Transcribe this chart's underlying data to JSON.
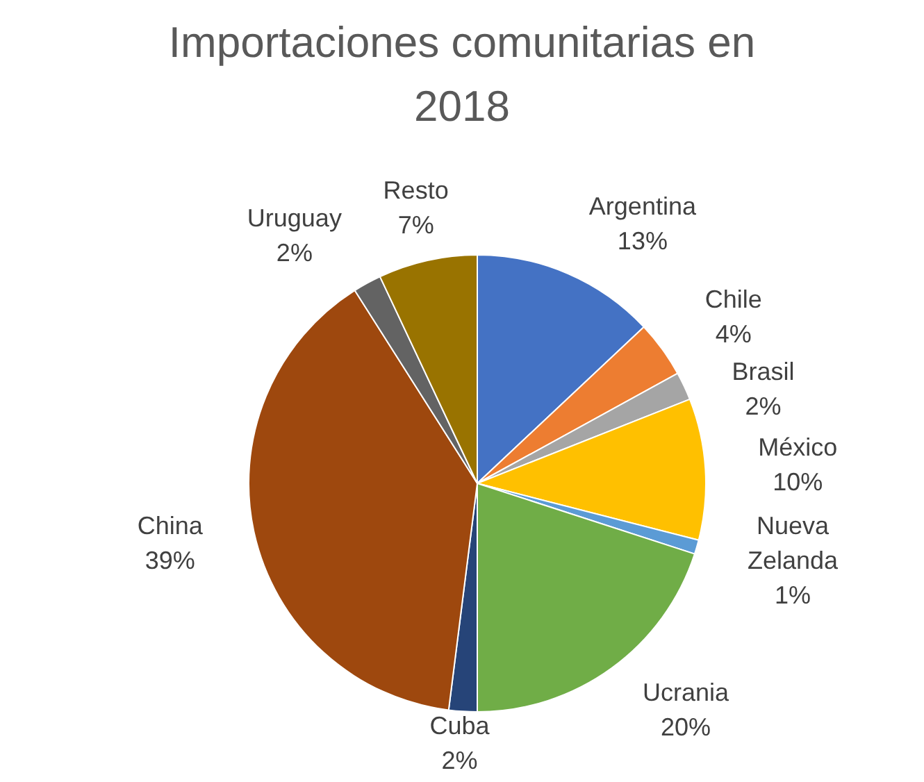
{
  "chart_data": {
    "type": "pie",
    "title": "Importaciones comunitarias en 2018",
    "categories": [
      "Argentina",
      "Chile",
      "Brasil",
      "México",
      "Nueva Zelanda",
      "Ucrania",
      "Cuba",
      "China",
      "Uruguay",
      "Resto"
    ],
    "values": [
      13,
      4,
      2,
      10,
      1,
      20,
      2,
      39,
      2,
      7
    ],
    "value_labels": [
      "13%",
      "4%",
      "2%",
      "10%",
      "1%",
      "20%",
      "2%",
      "39%",
      "2%",
      "7%"
    ],
    "colors": [
      "#4472c4",
      "#ed7d31",
      "#a5a5a5",
      "#ffc000",
      "#5b9bd5",
      "#70ad47",
      "#264478",
      "#9e480e",
      "#636363",
      "#997300"
    ]
  }
}
